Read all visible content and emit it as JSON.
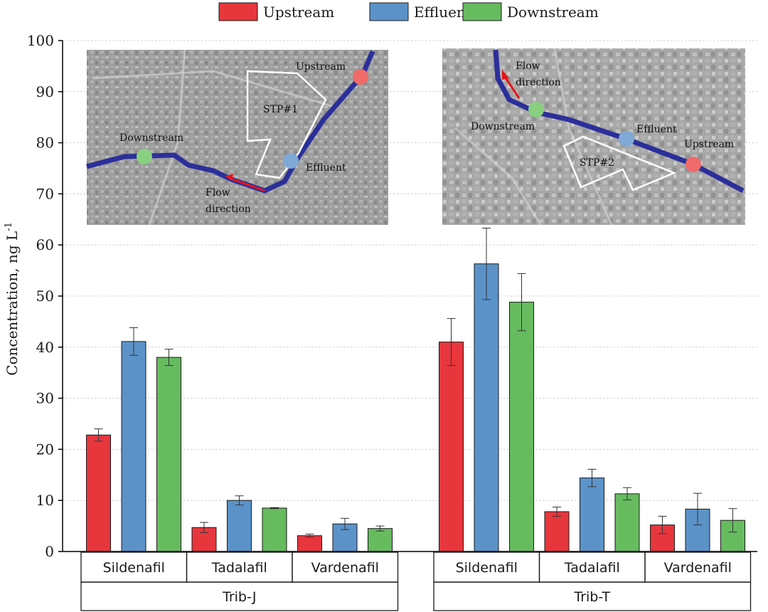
{
  "chart_data": {
    "type": "bar",
    "ylabel": "Concentration, ng L",
    "ylabel_superscript": "-1",
    "ylim": [
      0,
      100
    ],
    "yticks": [
      0,
      10,
      20,
      30,
      40,
      50,
      60,
      70,
      80,
      90,
      100
    ],
    "legend": [
      {
        "name": "Upstream",
        "color": "#e8363d"
      },
      {
        "name": "Effluent",
        "color": "#5b93c9"
      },
      {
        "name": "Downstream",
        "color": "#66bb5f"
      }
    ],
    "series": [
      {
        "name": "Upstream",
        "color": "#e8363d",
        "values": [
          22.8,
          4.7,
          3.1,
          41.0,
          7.8,
          5.2
        ],
        "errors": [
          1.2,
          1.0,
          0.3,
          4.6,
          0.9,
          1.7
        ]
      },
      {
        "name": "Effluent",
        "color": "#5b93c9",
        "values": [
          41.1,
          10.0,
          5.4,
          56.3,
          14.4,
          8.3
        ],
        "errors": [
          2.7,
          0.9,
          1.1,
          7.0,
          1.7,
          3.1
        ]
      },
      {
        "name": "Downstream",
        "color": "#66bb5f",
        "values": [
          38.0,
          8.5,
          4.5,
          48.8,
          11.3,
          6.1
        ],
        "errors": [
          1.6,
          0.1,
          0.5,
          5.6,
          1.2,
          2.3
        ]
      }
    ],
    "categories": [
      "Sildenafil",
      "Tadalafil",
      "Vardenafil",
      "Sildenafil",
      "Tadalafil",
      "Vardenafil"
    ],
    "groups": [
      {
        "name": "Trib-J",
        "categories": [
          "Sildenafil",
          "Tadalafil",
          "Vardenafil"
        ]
      },
      {
        "name": "Trib-T",
        "categories": [
          "Sildenafil",
          "Tadalafil",
          "Vardenafil"
        ]
      }
    ],
    "grid": "horizontal-dotted"
  },
  "insets": [
    {
      "name": "Trib-J map",
      "labels": {
        "upstream": "Upstream",
        "downstream": "Downstream",
        "effluent": "Effluent",
        "stp": "STP#1",
        "flow1": "Flow",
        "flow2": "direction"
      }
    },
    {
      "name": "Trib-T map",
      "labels": {
        "upstream": "Upstream",
        "downstream": "Downstream",
        "effluent": "Effluent",
        "stp": "STP#2",
        "flow1": "Flow",
        "flow2": "direction"
      }
    }
  ]
}
